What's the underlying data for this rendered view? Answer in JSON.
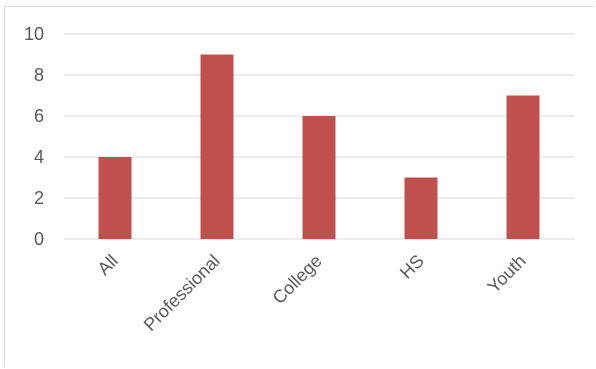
{
  "chart_data": {
    "type": "bar",
    "categories": [
      "All",
      "Professional",
      "College",
      "HS",
      "Youth"
    ],
    "values": [
      4,
      9,
      6,
      3,
      7
    ],
    "ylim": [
      0,
      10
    ],
    "yticks": [
      0,
      2,
      4,
      6,
      8,
      10
    ],
    "grid": true,
    "bar_color": "#c0504d",
    "title": "",
    "xlabel": "",
    "ylabel": ""
  }
}
